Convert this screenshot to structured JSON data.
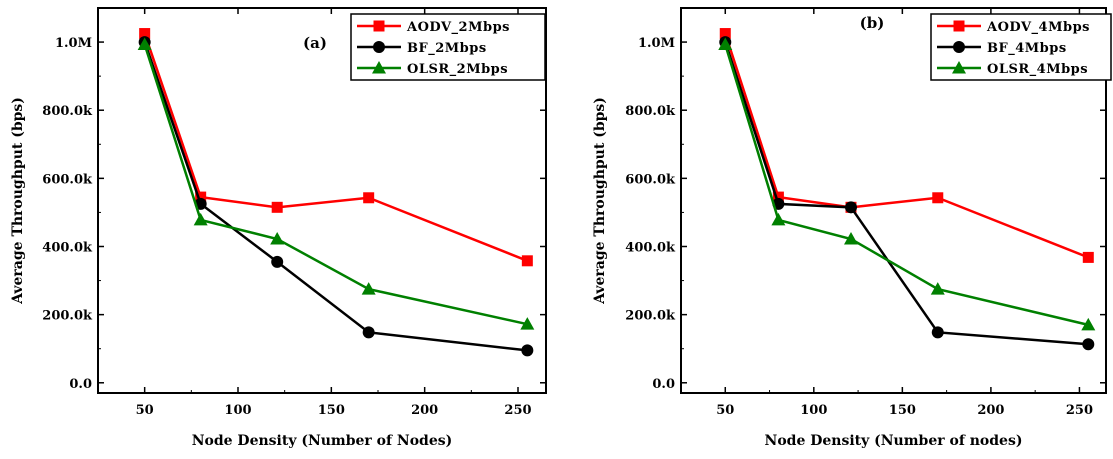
{
  "colors": {
    "aodv": "#ff0000",
    "bf": "#000000",
    "olsr": "#008000",
    "axis": "#000000"
  },
  "chart_data": [
    {
      "type": "line",
      "panel_label": "(a)",
      "xlabel": "Node Density (Number of Nodes)",
      "ylabel": "Average Throughput (bps)",
      "xlim": [
        25,
        265
      ],
      "ylim": [
        -30000,
        1100000
      ],
      "xticks": [
        50,
        100,
        150,
        200,
        250
      ],
      "xtick_labels": [
        "50",
        "100",
        "150",
        "200",
        "250"
      ],
      "yticks": [
        0,
        200000,
        400000,
        600000,
        800000,
        1000000
      ],
      "ytick_labels": [
        "0.0",
        "200.0k",
        "400.0k",
        "600.0k",
        "800.0k",
        "1.0M"
      ],
      "legend_position": "top-right",
      "grid": false,
      "series": [
        {
          "name": "AODV_2Mbps",
          "color": "#ff0000",
          "marker": "square",
          "x": [
            50,
            80,
            121,
            170,
            255
          ],
          "y": [
            1025000,
            545000,
            515000,
            543000,
            358000
          ]
        },
        {
          "name": "BF_2Mbps",
          "color": "#000000",
          "marker": "circle",
          "x": [
            50,
            80,
            121,
            170,
            255
          ],
          "y": [
            1000000,
            525000,
            355000,
            148000,
            95000
          ]
        },
        {
          "name": "OLSR_2Mbps",
          "color": "#008000",
          "marker": "triangle",
          "x": [
            50,
            80,
            121,
            170,
            255
          ],
          "y": [
            993000,
            478000,
            422000,
            275000,
            172000
          ]
        }
      ]
    },
    {
      "type": "line",
      "panel_label": "(b)",
      "xlabel": "Node Density (Number of nodes)",
      "ylabel": "Average Throughput (bps)",
      "xlim": [
        25,
        265
      ],
      "ylim": [
        -30000,
        1100000
      ],
      "xticks": [
        50,
        100,
        150,
        200,
        250
      ],
      "xtick_labels": [
        "50",
        "100",
        "150",
        "200",
        "250"
      ],
      "yticks": [
        0,
        200000,
        400000,
        600000,
        800000,
        1000000
      ],
      "ytick_labels": [
        "0.0",
        "200.0k",
        "400.0k",
        "600.0k",
        "800.0k",
        "1.0M"
      ],
      "legend_position": "top-right",
      "grid": false,
      "series": [
        {
          "name": "AODV_4Mbps",
          "color": "#ff0000",
          "marker": "square",
          "x": [
            50,
            80,
            121,
            170,
            255
          ],
          "y": [
            1025000,
            545000,
            515000,
            543000,
            368000
          ]
        },
        {
          "name": "BF_4Mbps",
          "color": "#000000",
          "marker": "circle",
          "x": [
            50,
            80,
            121,
            170,
            255
          ],
          "y": [
            1000000,
            525000,
            515000,
            148000,
            113000
          ]
        },
        {
          "name": "OLSR_4Mbps",
          "color": "#008000",
          "marker": "triangle",
          "x": [
            50,
            80,
            121,
            170,
            255
          ],
          "y": [
            993000,
            478000,
            422000,
            275000,
            170000
          ]
        }
      ]
    }
  ]
}
